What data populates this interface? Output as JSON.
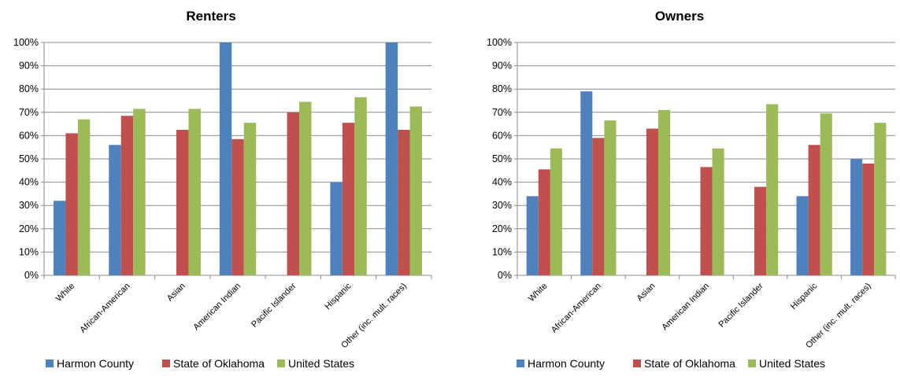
{
  "colors": {
    "Harmon County": "#4F81BD",
    "State of Oklahoma": "#C0504D",
    "United States": "#9BBB59",
    "grid": "#8C8C8C",
    "axis": "#8C8C8C"
  },
  "chart_data": [
    {
      "type": "bar",
      "title": "Renters",
      "categories": [
        "White",
        "African-American",
        "Asian",
        "American Indian",
        "Pacific Islander",
        "Hispanic",
        "Other (inc. mult. races)"
      ],
      "ylim": [
        0,
        1
      ],
      "yticks": [
        "0%",
        "10%",
        "20%",
        "30%",
        "40%",
        "50%",
        "60%",
        "70%",
        "80%",
        "90%",
        "100%"
      ],
      "grid": true,
      "legend_position": "bottom",
      "series": [
        {
          "name": "Harmon County",
          "values": [
            0.32,
            0.56,
            null,
            1.0,
            null,
            0.4,
            1.0
          ]
        },
        {
          "name": "State of Oklahoma",
          "values": [
            0.61,
            0.685,
            0.625,
            0.585,
            0.7,
            0.655,
            0.625
          ]
        },
        {
          "name": "United States",
          "values": [
            0.67,
            0.715,
            0.715,
            0.655,
            0.745,
            0.765,
            0.725
          ]
        }
      ]
    },
    {
      "type": "bar",
      "title": "Owners",
      "categories": [
        "White",
        "African-American",
        "Asian",
        "American Indian",
        "Pacific Islander",
        "Hispanic",
        "Other (inc. mult. races)"
      ],
      "ylim": [
        0,
        1
      ],
      "yticks": [
        "0%",
        "10%",
        "20%",
        "30%",
        "40%",
        "50%",
        "60%",
        "70%",
        "80%",
        "90%",
        "100%"
      ],
      "grid": true,
      "legend_position": "bottom",
      "series": [
        {
          "name": "Harmon County",
          "values": [
            0.34,
            0.79,
            null,
            null,
            null,
            0.34,
            0.5
          ]
        },
        {
          "name": "State of Oklahoma",
          "values": [
            0.455,
            0.59,
            0.63,
            0.465,
            0.38,
            0.56,
            0.48
          ]
        },
        {
          "name": "United States",
          "values": [
            0.545,
            0.665,
            0.71,
            0.545,
            0.735,
            0.695,
            0.655
          ]
        }
      ]
    }
  ]
}
